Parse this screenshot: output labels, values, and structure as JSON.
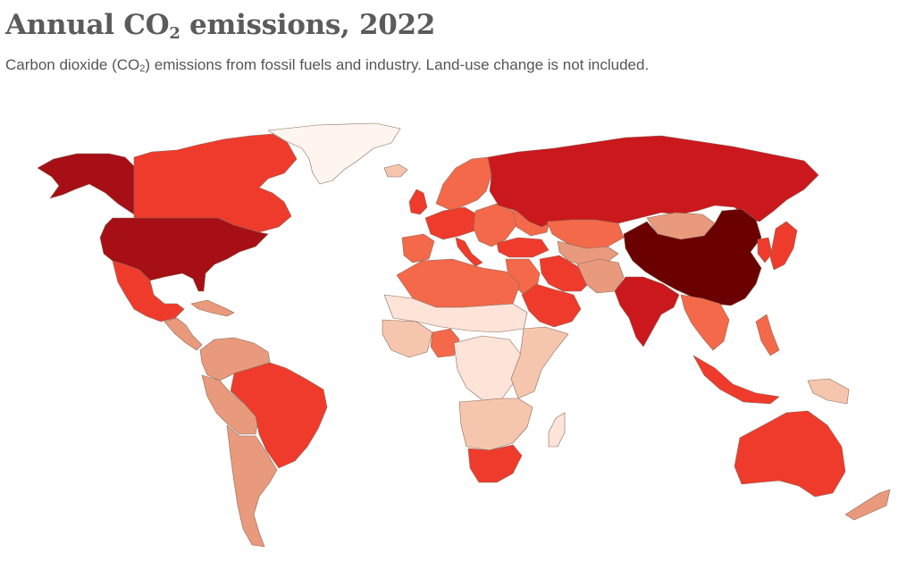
{
  "header": {
    "title_prefix": "Annual CO",
    "title_sub": "2",
    "title_suffix": " emissions, 2022",
    "subtitle_prefix": "Carbon dioxide (CO",
    "subtitle_sub": "2",
    "subtitle_suffix": ") emissions from fossil fuels and industry. Land-use change is not included."
  },
  "map": {
    "colors": {
      "highest": "#6b0000",
      "very_high": "#a50f15",
      "high": "#cb181d",
      "upper_mid": "#ef3b2c",
      "mid": "#f4694a",
      "lower_mid": "#e99a7c",
      "low": "#f5c6ad",
      "lowest": "#fde3d8",
      "no_data": "#fff5f0"
    },
    "regions": [
      {
        "name": "greenland",
        "level": "no_data"
      },
      {
        "name": "alaska",
        "level": "very_high"
      },
      {
        "name": "canada",
        "level": "upper_mid"
      },
      {
        "name": "usa",
        "level": "very_high"
      },
      {
        "name": "mexico",
        "level": "upper_mid"
      },
      {
        "name": "central-america",
        "level": "lower_mid"
      },
      {
        "name": "caribbean",
        "level": "lower_mid"
      },
      {
        "name": "colombia-venezuela",
        "level": "lower_mid"
      },
      {
        "name": "peru-bolivia",
        "level": "lower_mid"
      },
      {
        "name": "brazil",
        "level": "upper_mid"
      },
      {
        "name": "argentina-chile",
        "level": "lower_mid"
      },
      {
        "name": "iceland",
        "level": "low"
      },
      {
        "name": "norway-sweden-finland",
        "level": "mid"
      },
      {
        "name": "uk-ireland",
        "level": "upper_mid"
      },
      {
        "name": "western-europe",
        "level": "upper_mid"
      },
      {
        "name": "iberia",
        "level": "mid"
      },
      {
        "name": "italy",
        "level": "upper_mid"
      },
      {
        "name": "central-eastern-europe",
        "level": "mid"
      },
      {
        "name": "ukraine",
        "level": "mid"
      },
      {
        "name": "turkey",
        "level": "upper_mid"
      },
      {
        "name": "russia",
        "level": "high"
      },
      {
        "name": "kazakhstan",
        "level": "mid"
      },
      {
        "name": "central-asia",
        "level": "lower_mid"
      },
      {
        "name": "mongolia",
        "level": "lower_mid"
      },
      {
        "name": "china",
        "level": "highest"
      },
      {
        "name": "middle-east",
        "level": "mid"
      },
      {
        "name": "iran",
        "level": "upper_mid"
      },
      {
        "name": "saudi-arabia",
        "level": "upper_mid"
      },
      {
        "name": "pakistan-afghanistan",
        "level": "lower_mid"
      },
      {
        "name": "india",
        "level": "high"
      },
      {
        "name": "southeast-asia",
        "level": "mid"
      },
      {
        "name": "indonesia",
        "level": "upper_mid"
      },
      {
        "name": "philippines",
        "level": "mid"
      },
      {
        "name": "papua-new-guinea",
        "level": "low"
      },
      {
        "name": "japan",
        "level": "upper_mid"
      },
      {
        "name": "korea",
        "level": "upper_mid"
      },
      {
        "name": "north-africa",
        "level": "mid"
      },
      {
        "name": "sahel",
        "level": "lowest"
      },
      {
        "name": "west-africa",
        "level": "low"
      },
      {
        "name": "nigeria",
        "level": "mid"
      },
      {
        "name": "central-africa",
        "level": "lowest"
      },
      {
        "name": "east-africa",
        "level": "low"
      },
      {
        "name": "southern-africa",
        "level": "low"
      },
      {
        "name": "south-africa",
        "level": "upper_mid"
      },
      {
        "name": "madagascar",
        "level": "lowest"
      },
      {
        "name": "australia",
        "level": "upper_mid"
      },
      {
        "name": "new-zealand",
        "level": "lower_mid"
      }
    ]
  }
}
